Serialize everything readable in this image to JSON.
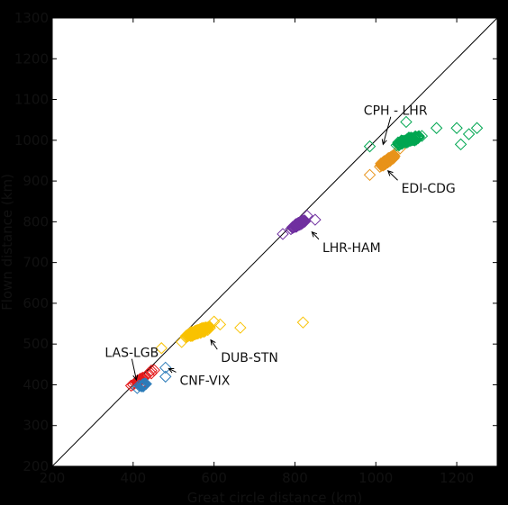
{
  "chart_data": {
    "type": "scatter",
    "title": "",
    "xlabel": "Great circle distance (km)",
    "ylabel": "Flown distance (km)",
    "xlim": [
      200,
      1300
    ],
    "ylim": [
      200,
      1300
    ],
    "xticks": [
      200,
      400,
      600,
      800,
      1000,
      1200
    ],
    "yticks": [
      200,
      300,
      400,
      500,
      600,
      700,
      800,
      900,
      1000,
      1100,
      1200,
      1300
    ],
    "grid": false,
    "marker": "diamond-open",
    "reference_line": {
      "from": [
        200,
        200
      ],
      "to": [
        1300,
        1300
      ],
      "color": "#000000"
    },
    "series": [
      {
        "color": "#e41a1c",
        "center": [
          415,
          410
        ],
        "points": [
          [
            400,
            400
          ],
          [
            410,
            405
          ],
          [
            420,
            412
          ],
          [
            430,
            420
          ],
          [
            438,
            428
          ],
          [
            445,
            435
          ],
          [
            395,
            398
          ],
          [
            425,
            405
          ],
          [
            445,
            428
          ],
          [
            452,
            436
          ]
        ]
      },
      {
        "color": "#2b7bb9",
        "center": [
          425,
          400
        ],
        "points": [
          [
            410,
            392
          ],
          [
            425,
            396
          ],
          [
            432,
            402
          ],
          [
            480,
            442
          ],
          [
            480,
            420
          ],
          [
            415,
            398
          ]
        ]
      },
      {
        "color": "#f9c200",
        "center": [
          560,
          530
        ],
        "points": [
          [
            470,
            490
          ],
          [
            665,
            540
          ],
          [
            820,
            553
          ],
          [
            600,
            555
          ],
          [
            615,
            548
          ],
          [
            520,
            505
          ],
          [
            590,
            540
          ],
          [
            545,
            520
          ]
        ]
      },
      {
        "color": "#7030a0",
        "center": [
          810,
          795
        ],
        "points": [
          [
            770,
            770
          ],
          [
            850,
            805
          ],
          [
            790,
            782
          ],
          [
            830,
            815
          ]
        ]
      },
      {
        "color": "#e8931a",
        "center": [
          1030,
          950
        ],
        "points": [
          [
            985,
            915
          ],
          [
            1070,
            995
          ],
          [
            1010,
            935
          ],
          [
            1060,
            980
          ]
        ]
      },
      {
        "color": "#00a651",
        "center": [
          1080,
          1000
        ],
        "points": [
          [
            1200,
            1030
          ],
          [
            1210,
            990
          ],
          [
            1230,
            1015
          ],
          [
            1250,
            1030
          ],
          [
            985,
            985
          ],
          [
            1075,
            1045
          ],
          [
            1150,
            1030
          ]
        ]
      }
    ],
    "annotations": [
      {
        "text": "CPH - LHR",
        "target": [
          1018,
          990
        ],
        "label_pos": [
          970,
          1062
        ]
      },
      {
        "text": "EDI-CDG",
        "target": [
          1030,
          925
        ],
        "label_pos": [
          1063,
          871
        ]
      },
      {
        "text": "LHR-HAM",
        "target": [
          842,
          775
        ],
        "label_pos": [
          868,
          726
        ]
      },
      {
        "text": "DUB-STN",
        "target": [
          592,
          510
        ],
        "label_pos": [
          617,
          456
        ]
      },
      {
        "text": "LAS-LGB",
        "target": [
          408,
          412
        ],
        "label_pos": [
          330,
          468
        ]
      },
      {
        "text": "CNF-VIX",
        "target": [
          488,
          440
        ],
        "label_pos": [
          515,
          400
        ]
      }
    ]
  }
}
